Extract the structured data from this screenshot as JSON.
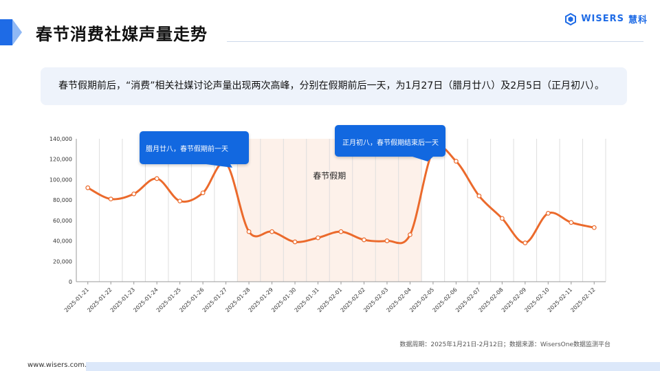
{
  "header": {
    "title": "春节消费社媒声量走势",
    "logo_text": "WISERS",
    "logo_suffix": "慧科"
  },
  "summary": {
    "text": "春节假期前后，“消费”相关社媒讨论声量出现两次高峰，分别在假期前后一天，为1月27日（腊月廿八）及2月5日（正月初八）。"
  },
  "footnote": "数据周期：2025年1月21日-2月12日；数据来源：WisersOne数据监测平台",
  "footer": {
    "url": "www.wisers.com.cn"
  },
  "colors": {
    "line": "#eb6a2c",
    "holiday_band": "#fdf1ea",
    "callout": "#1268e0",
    "accent": "#1e6be6"
  },
  "chart_data": {
    "type": "line",
    "x": [
      "2025-01-21",
      "2025-01-22",
      "2025-01-23",
      "2025-01-24",
      "2025-01-25",
      "2025-01-26",
      "2025-01-27",
      "2025-01-28",
      "2025-01-29",
      "2025-01-30",
      "2025-01-31",
      "2025-02-01",
      "2025-02-02",
      "2025-02-03",
      "2025-02-04",
      "2025-02-05",
      "2025-02-06",
      "2025-02-07",
      "2025-02-08",
      "2025-02-09",
      "2025-02-10",
      "2025-02-11",
      "2025-02-12"
    ],
    "series": [
      {
        "values": [
          92000,
          81000,
          86000,
          101000,
          79000,
          87000,
          116000,
          49000,
          49000,
          39000,
          43000,
          49000,
          41000,
          40000,
          46000,
          128000,
          118000,
          84000,
          62000,
          38000,
          67000,
          58000,
          53000
        ]
      }
    ],
    "ylim": [
      0,
      140000
    ],
    "yticks": [
      0,
      20000,
      40000,
      60000,
      80000,
      100000,
      120000,
      140000
    ],
    "ytick_labels": [
      "0",
      "20,000",
      "40,000",
      "60,000",
      "80,000",
      "100,000",
      "120,000",
      "140,000"
    ],
    "grid": "vertical",
    "holiday": {
      "start": "2025-01-28",
      "end": "2025-02-04",
      "label": "春节假期"
    },
    "annotations": [
      {
        "x": "2025-01-27",
        "text": "腊月廿八，春节假期前一天"
      },
      {
        "x": "2025-02-05",
        "text": "正月初八，春节假期结束后一天"
      }
    ]
  }
}
